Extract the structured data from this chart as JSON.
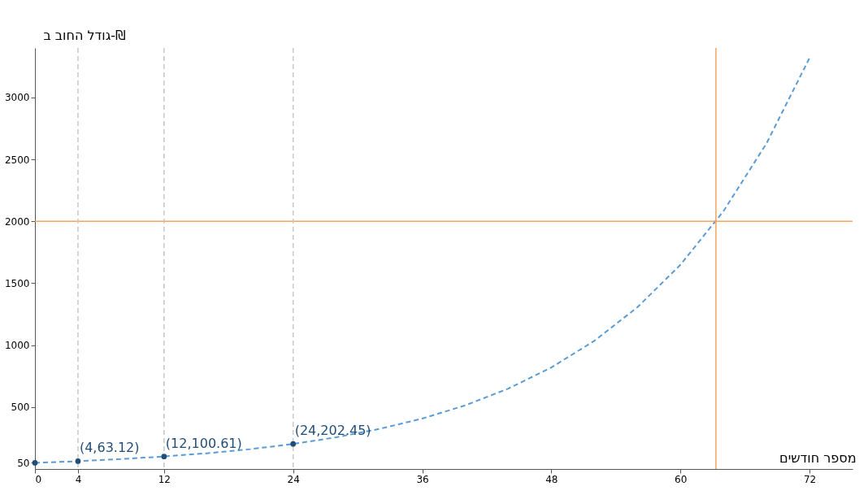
{
  "chart_data": {
    "type": "line",
    "xlabel": "מספר חודשים",
    "ylabel": "גודל החוב ב-₪",
    "series": [
      {
        "color": "#5b9bd5",
        "line_style": "dashed",
        "x": [
          0,
          4,
          8,
          12,
          16,
          20,
          24,
          28,
          32,
          36,
          40,
          44,
          48,
          52,
          56,
          60,
          64,
          68,
          72
        ],
        "values": [
          50,
          63,
          80,
          101,
          127,
          160,
          202,
          256,
          323,
          407,
          514,
          649,
          820,
          1035,
          1306,
          1649,
          2082,
          2629,
          3319
        ]
      },
      {
        "type": "scatter",
        "color": "#1f4e79",
        "marker": "circle",
        "x": [
          0,
          4,
          12,
          24
        ],
        "values": [
          50,
          63.12,
          100.61,
          202.45
        ]
      }
    ],
    "annotations": [
      {
        "text": "(4,63.12)",
        "x": 4,
        "y": 63.12
      },
      {
        "text": "(12,100.61)",
        "x": 12,
        "y": 100.61
      },
      {
        "text": "(24,202.45)",
        "x": 24,
        "y": 202.45
      }
    ],
    "ref_lines": [
      {
        "axis": "y",
        "value": 2000,
        "color": "#f4a460",
        "line_style": "solid"
      },
      {
        "axis": "x",
        "value": 63.3,
        "color": "#f4a460",
        "line_style": "solid"
      },
      {
        "axis": "x",
        "value": 4,
        "color": "#c8c8c8",
        "line_style": "dashed"
      },
      {
        "axis": "x",
        "value": 12,
        "color": "#c8c8c8",
        "line_style": "dashed"
      },
      {
        "axis": "x",
        "value": 24,
        "color": "#c8c8c8",
        "line_style": "dashed"
      }
    ],
    "xlim": [
      0,
      76
    ],
    "ylim": [
      0,
      3400
    ],
    "xticks": [
      0,
      4,
      12,
      24,
      36,
      48,
      60,
      72
    ],
    "yticks": [
      {
        "value": 50,
        "label": "50"
      },
      500,
      1000,
      1500,
      2000,
      2500,
      3000
    ],
    "grid": false
  }
}
